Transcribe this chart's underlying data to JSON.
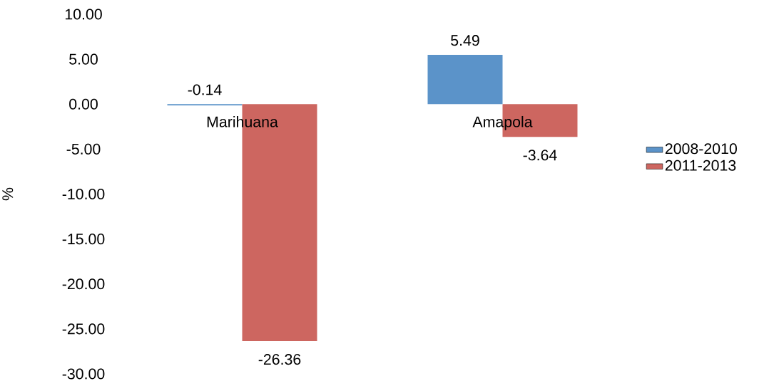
{
  "chart_data": {
    "type": "bar",
    "ylabel": "%",
    "categories": [
      "Marihuana",
      "Amapola"
    ],
    "series": [
      {
        "name": "2008-2010",
        "color": "#5b93c9",
        "values": [
          -0.14,
          5.49
        ]
      },
      {
        "name": "2011-2013",
        "color": "#cd6660",
        "values": [
          -26.36,
          -3.64
        ]
      }
    ],
    "ylim": [
      -30,
      10
    ],
    "yticks": [
      {
        "value": -30,
        "label": "-30.00"
      },
      {
        "value": -25,
        "label": "-25.00"
      },
      {
        "value": -20,
        "label": "-20.00"
      },
      {
        "value": -15,
        "label": "-15.00"
      },
      {
        "value": -10,
        "label": "-10.00"
      },
      {
        "value": -5,
        "label": "-5.00"
      },
      {
        "value": 0,
        "label": "0.00"
      },
      {
        "value": 5,
        "label": "5.00"
      },
      {
        "value": 10,
        "label": "10.00"
      }
    ],
    "data_labels": true,
    "legend": "right"
  }
}
